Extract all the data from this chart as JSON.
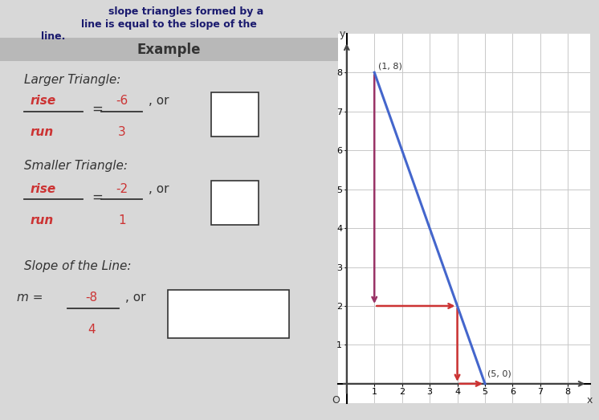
{
  "background_color": "#d8d8d8",
  "panel_color": "#e0dede",
  "example_bar_color": "#b8b8b8",
  "header_color": "#1a1a6e",
  "example_label": "Example",
  "larger_triangle_label": "Larger Triangle:",
  "smaller_triangle_label": "Smaller Triangle:",
  "slope_line_label": "Slope of the Line:",
  "larger_rise_num": "-6",
  "larger_rise_den": "3",
  "smaller_rise_num": "-2",
  "smaller_rise_den": "1",
  "slope_num": "-8",
  "slope_den": "4",
  "line_color": "#4466cc",
  "large_vert_color": "#993366",
  "arrow_color": "#cc3333",
  "grid_color": "#c8c8c8",
  "axis_color": "#444444",
  "label_color_red": "#cc3333",
  "label_color_black": "#333333",
  "point1": [
    1,
    8
  ],
  "point2": [
    5,
    0
  ],
  "xlim": [
    -0.3,
    8.8
  ],
  "ylim": [
    -0.5,
    9.0
  ],
  "xticks": [
    1,
    2,
    3,
    4,
    5,
    6,
    7,
    8
  ],
  "yticks": [
    1,
    2,
    3,
    4,
    5,
    6,
    7,
    8
  ]
}
